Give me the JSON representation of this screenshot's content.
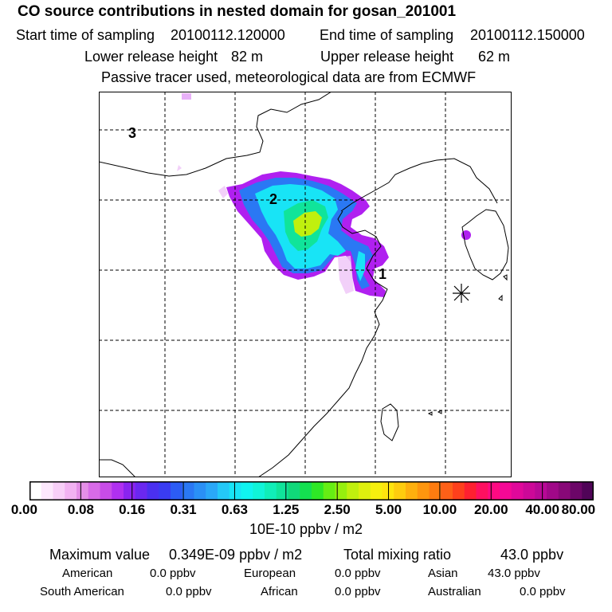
{
  "header": {
    "title": "CO  source contributions in nested domain for gosan_201001",
    "start_label": "Start time of sampling",
    "start_value": "20100112.120000",
    "end_label": "End time of sampling",
    "end_value": "20100112.150000",
    "lower_label": "Lower release height",
    "lower_value": "82 m",
    "upper_label": "Upper release height",
    "upper_value": "62 m",
    "tracer_note": "Passive tracer used, meteorological data are from ECMWF"
  },
  "map": {
    "labels": [
      "1",
      "2",
      "3"
    ],
    "receptor_marker": "asterisk-icon"
  },
  "colorbar": {
    "ticks": [
      "0.00",
      "0.08",
      "0.16",
      "0.31",
      "0.63",
      "1.25",
      "2.50",
      "5.00",
      "10.00",
      "20.00",
      "40.00",
      "80.00"
    ],
    "units": "10E-10 ppbv / m2",
    "colors": [
      "#ffffff",
      "#fde8fd",
      "#f8cff8",
      "#f2b2f2",
      "#e58fe8",
      "#d86be8",
      "#c84ce8",
      "#b030f0",
      "#8a24f0",
      "#6a28f0",
      "#4a30f0",
      "#3a3cf2",
      "#2c5cf4",
      "#2a78f4",
      "#2a90f6",
      "#2aa8f8",
      "#24c8f8",
      "#18e4f6",
      "#10f4f0",
      "#10f4d8",
      "#10eeb8",
      "#10e49a",
      "#10d87a",
      "#14e050",
      "#2ee826",
      "#66ee14",
      "#96f00e",
      "#c0f00e",
      "#def00e",
      "#f6f00e",
      "#fee40e",
      "#fecc0e",
      "#feb00e",
      "#fe960e",
      "#fe7c10",
      "#fe6018",
      "#fe401c",
      "#fe2030",
      "#fe1060",
      "#fe0a82",
      "#f40896",
      "#e0089a",
      "#cc0898",
      "#b80896",
      "#a00888",
      "#880878",
      "#6c0668",
      "#500458"
    ]
  },
  "stats": {
    "max_label": "Maximum value",
    "max_value": "0.349E-09 ppbv / m2",
    "total_label": "Total mixing ratio",
    "total_value": "43.0 ppbv",
    "regions": [
      {
        "name": "American",
        "value": "0.0 ppbv"
      },
      {
        "name": "European",
        "value": "0.0 ppbv"
      },
      {
        "name": "Asian",
        "value": "43.0 ppbv"
      },
      {
        "name": "South American",
        "value": "0.0 ppbv"
      },
      {
        "name": "African",
        "value": "0.0 ppbv"
      },
      {
        "name": "Australian",
        "value": "0.0 ppbv"
      }
    ]
  }
}
